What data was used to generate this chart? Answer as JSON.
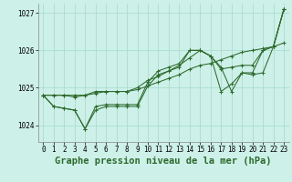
{
  "title": "Graphe pression niveau de la mer (hPa)",
  "background_color": "#cdf0e8",
  "grid_color": "#aaddd0",
  "line_color": "#2d6a2d",
  "xlim": [
    -0.5,
    23.5
  ],
  "ylim": [
    1023.55,
    1027.25
  ],
  "yticks": [
    1024,
    1025,
    1026,
    1027
  ],
  "xticks": [
    0,
    1,
    2,
    3,
    4,
    5,
    6,
    7,
    8,
    9,
    10,
    11,
    12,
    13,
    14,
    15,
    16,
    17,
    18,
    19,
    20,
    21,
    22,
    23
  ],
  "series": [
    [
      1024.8,
      1024.8,
      1024.8,
      1024.75,
      1024.8,
      1024.85,
      1024.9,
      1024.9,
      1024.9,
      1024.95,
      1025.05,
      1025.15,
      1025.25,
      1025.35,
      1025.5,
      1025.6,
      1025.65,
      1025.75,
      1025.85,
      1025.95,
      1026.0,
      1026.05,
      1026.1,
      1026.2
    ],
    [
      1024.8,
      1024.5,
      1024.45,
      1024.4,
      1023.9,
      1024.4,
      1024.5,
      1024.5,
      1024.5,
      1024.5,
      1025.05,
      1025.35,
      1025.45,
      1025.55,
      1026.0,
      1026.0,
      1025.85,
      1025.55,
      1024.9,
      1025.4,
      1025.4,
      1026.0,
      1026.1,
      1027.1
    ],
    [
      1024.8,
      1024.5,
      1024.45,
      1024.4,
      1023.9,
      1024.5,
      1024.55,
      1024.55,
      1024.55,
      1024.55,
      1025.15,
      1025.45,
      1025.55,
      1025.65,
      1026.0,
      1026.0,
      1025.85,
      1024.9,
      1025.1,
      1025.4,
      1025.35,
      1025.4,
      1026.1,
      1027.1
    ],
    [
      1024.8,
      1024.8,
      1024.8,
      1024.8,
      1024.8,
      1024.9,
      1024.9,
      1024.9,
      1024.9,
      1025.0,
      1025.2,
      1025.3,
      1025.45,
      1025.6,
      1025.8,
      1026.0,
      1025.85,
      1025.5,
      1025.55,
      1025.6,
      1025.6,
      1026.0,
      1026.1,
      1027.1
    ]
  ],
  "title_fontsize": 7.5,
  "tick_fontsize": 5.5,
  "ylabel_fontsize": 5.5
}
